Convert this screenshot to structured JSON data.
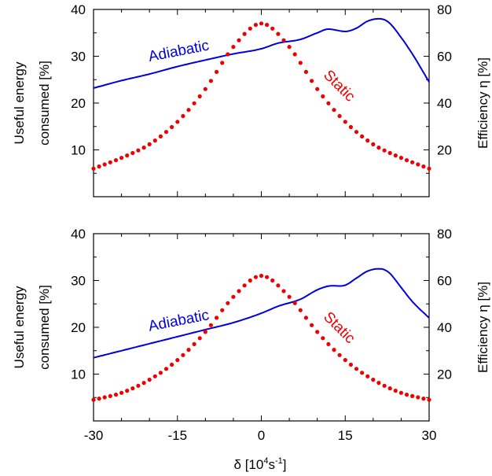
{
  "figure": {
    "xlabel_symbol": "δ",
    "xlabel_unit_open": " [10",
    "xlabel_exp1": "4",
    "xlabel_mid": "s",
    "xlabel_exp2": "-1",
    "xlabel_close": "]"
  },
  "chart_data": [
    {
      "type": "line",
      "panel": "top",
      "ylabel_line1": "Useful energy",
      "ylabel_line2": "consumed [%]",
      "y2label": "Efficiency η [%]",
      "xlim": [
        -30,
        30
      ],
      "ylim": [
        0,
        40
      ],
      "y2lim": [
        0,
        80
      ],
      "xticks": [
        "-30",
        "-15",
        "0",
        "15",
        "30"
      ],
      "yticks": [
        "10",
        "20",
        "30",
        "40"
      ],
      "y2ticks": [
        "20",
        "40",
        "60",
        "80"
      ],
      "series": [
        {
          "name": "Adiabatic",
          "axis": "left",
          "style": "line",
          "color": "#0000dd",
          "x": [
            -30,
            -25,
            -20,
            -15,
            -10,
            -5,
            0,
            3,
            7,
            10,
            12,
            15,
            17,
            19,
            21,
            22,
            23,
            25,
            27,
            30
          ],
          "y": [
            23.2,
            24.8,
            26.2,
            27.8,
            29.2,
            30.5,
            31.6,
            32.8,
            33.6,
            35.0,
            35.8,
            35.3,
            36.0,
            37.5,
            38.0,
            37.8,
            37.0,
            34.0,
            30.5,
            24.5
          ]
        },
        {
          "name": "Static",
          "axis": "left",
          "style": "dotted",
          "color": "#ee0000",
          "x": [
            -30,
            -25,
            -20,
            -15,
            -10,
            -5,
            0,
            5,
            10,
            15,
            20,
            25,
            30
          ],
          "y": [
            6.0,
            8.3,
            11.2,
            16.0,
            23.0,
            32.0,
            37.0,
            32.0,
            23.0,
            16.0,
            11.2,
            8.3,
            6.0
          ]
        }
      ]
    },
    {
      "type": "line",
      "panel": "bottom",
      "ylabel_line1": "Useful energy",
      "ylabel_line2": "consumed [%]",
      "y2label": "Efficiency η [%]",
      "xlim": [
        -30,
        30
      ],
      "ylim": [
        0,
        40
      ],
      "y2lim": [
        0,
        80
      ],
      "xticks": [
        "-30",
        "-15",
        "0",
        "15",
        "30"
      ],
      "yticks": [
        "10",
        "20",
        "30",
        "40"
      ],
      "y2ticks": [
        "20",
        "40",
        "60",
        "80"
      ],
      "series": [
        {
          "name": "Adiabatic",
          "axis": "left",
          "style": "line",
          "color": "#0000dd",
          "x": [
            -30,
            -25,
            -20,
            -15,
            -10,
            -5,
            0,
            3,
            7,
            10,
            12,
            15,
            17,
            19,
            21,
            22,
            23,
            25,
            27,
            30
          ],
          "y": [
            13.5,
            15.0,
            16.5,
            18.0,
            19.5,
            21.0,
            23.0,
            24.5,
            26.0,
            28.0,
            28.8,
            29.0,
            30.5,
            32.0,
            32.5,
            32.3,
            31.5,
            28.5,
            25.5,
            22.0
          ]
        },
        {
          "name": "Static",
          "axis": "left",
          "style": "dotted",
          "color": "#ee0000",
          "x": [
            -30,
            -25,
            -20,
            -15,
            -10,
            -5,
            0,
            5,
            10,
            15,
            20,
            25,
            30
          ],
          "y": [
            4.5,
            6.0,
            8.8,
            13.0,
            19.0,
            26.5,
            31.0,
            26.5,
            19.0,
            13.0,
            8.8,
            6.0,
            4.5
          ]
        }
      ]
    }
  ]
}
